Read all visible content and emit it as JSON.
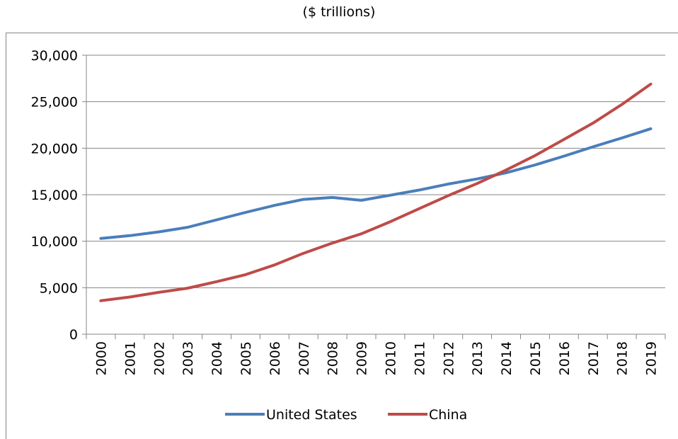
{
  "chart_data": {
    "type": "line",
    "title": "($ trillions)",
    "x": [
      "2000",
      "2001",
      "2002",
      "2003",
      "2004",
      "2005",
      "2006",
      "2007",
      "2008",
      "2009",
      "2010",
      "2011",
      "2012",
      "2013",
      "2014",
      "2015",
      "2016",
      "2017",
      "2018",
      "2019"
    ],
    "ylim": [
      0,
      30000
    ],
    "yticks": [
      0,
      5000,
      10000,
      15000,
      20000,
      25000,
      30000
    ],
    "ytick_labels": [
      "0",
      "5,000",
      "10,000",
      "15,000",
      "20,000",
      "25,000",
      "30,000"
    ],
    "grid": true,
    "legend_position": "bottom",
    "series": [
      {
        "name": "United States",
        "color": "#4a7ebb",
        "values": [
          10300,
          10600,
          11000,
          11500,
          12300,
          13100,
          13850,
          14500,
          14700,
          14400,
          14950,
          15500,
          16150,
          16700,
          17350,
          18200,
          19150,
          20150,
          21100,
          22100
        ]
      },
      {
        "name": "China",
        "color": "#be4b48",
        "values": [
          3600,
          4000,
          4500,
          4950,
          5650,
          6400,
          7450,
          8700,
          9800,
          10800,
          12100,
          13500,
          14900,
          16200,
          17650,
          19200,
          20950,
          22700,
          24700,
          26900
        ]
      }
    ]
  }
}
